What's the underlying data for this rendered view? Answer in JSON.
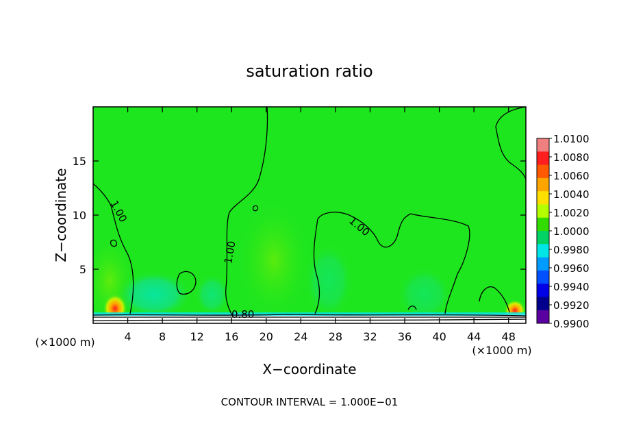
{
  "chart_data": {
    "type": "heatmap",
    "title": "saturation ratio",
    "xlabel": "X−coordinate",
    "ylabel": "Z−coordinate",
    "x_unit_left": "(×1000 m)",
    "x_unit_right": "(×1000 m)",
    "xlim": [
      0,
      50
    ],
    "ylim": [
      0,
      20
    ],
    "x_ticks": [
      4,
      8,
      12,
      16,
      20,
      24,
      28,
      32,
      36,
      40,
      44,
      48
    ],
    "y_ticks": [
      5,
      10,
      15
    ],
    "contour_labels": [
      {
        "text": "1.00",
        "x": 2.6,
        "y": 10.2,
        "angle": 62
      },
      {
        "text": "1.00",
        "x": 16.2,
        "y": 6.5,
        "angle": -80
      },
      {
        "text": "1.00",
        "x": 30.5,
        "y": 8.7,
        "angle": 40
      },
      {
        "text": "0.80",
        "x": 17.3,
        "y": 0.5,
        "angle": 0
      }
    ],
    "colorbar": {
      "labels": [
        "1.0100",
        "1.0080",
        "1.0060",
        "1.0040",
        "1.0020",
        "1.0000",
        "0.9980",
        "0.9960",
        "0.9940",
        "0.9920",
        "0.9900"
      ],
      "colors": [
        "#f08080",
        "#ff1e1e",
        "#ff5a00",
        "#ffa500",
        "#ffe000",
        "#b4ff00",
        "#32dc00",
        "#00d264",
        "#00e6e6",
        "#009bff",
        "#0050ff",
        "#0000e6",
        "#00008c",
        "#5a00a0"
      ]
    },
    "background_color": "#1ee61e",
    "footer": "CONTOUR INTERVAL = 1.000E−01"
  }
}
